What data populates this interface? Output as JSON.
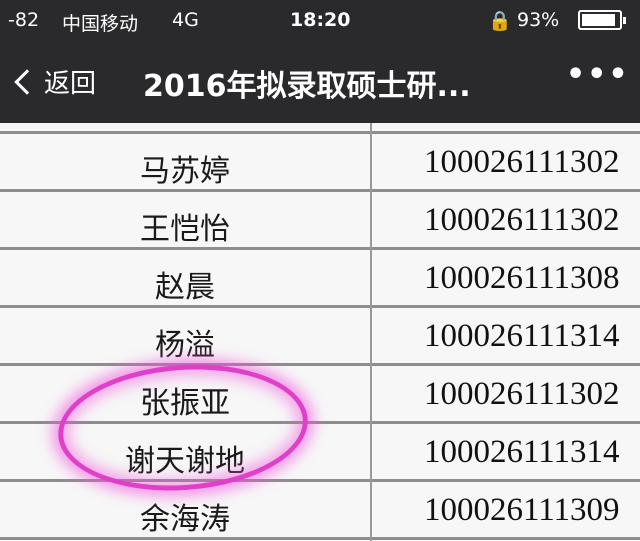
{
  "status_bar": {
    "signal": "-82",
    "carrier": "中国移动",
    "network": "4G",
    "time": "18:20",
    "battery": "93%",
    "battery_level": 0.93,
    "lock_icon": "rotation-lock-icon"
  },
  "nav": {
    "back_label": "返回",
    "title": "2016年拟录取硕士研...",
    "more": "•••"
  },
  "table": {
    "rows": [
      {
        "name": "马苏婷",
        "id": "100026111302"
      },
      {
        "name": "王恺怡",
        "id": "100026111302"
      },
      {
        "name": "赵晨",
        "id": "100026111308"
      },
      {
        "name": "杨溢",
        "id": "100026111314"
      },
      {
        "name": "张振亚",
        "id": "100026111302"
      },
      {
        "name": "谢天谢地",
        "id": "100026111314"
      },
      {
        "name": "余海涛",
        "id": "100026111309"
      }
    ]
  },
  "highlight_color": "#e040c8"
}
